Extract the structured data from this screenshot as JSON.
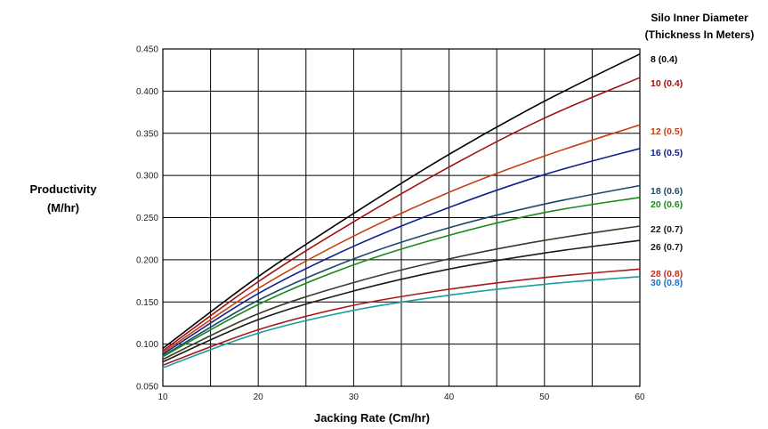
{
  "chart_data": {
    "type": "line",
    "title": "",
    "xlabel": "Jacking Rate (Cm/hr)",
    "ylabel": [
      "Productivity",
      "(M/hr)"
    ],
    "legend_title": [
      "Silo Inner Diameter",
      "(Thickness In Meters)"
    ],
    "legend_placement": "right",
    "grid": true,
    "xlim": [
      10,
      60
    ],
    "ylim": [
      0.05,
      0.45
    ],
    "x_ticks": [
      10,
      20,
      30,
      40,
      50,
      60
    ],
    "x_tick_labels": [
      "10",
      "20",
      "30",
      "40",
      "50",
      "60"
    ],
    "x_grid_step": 5,
    "y_ticks": [
      0.05,
      0.1,
      0.15,
      0.2,
      0.25,
      0.3,
      0.35,
      0.4,
      0.45
    ],
    "y_tick_labels": [
      "0.050",
      "0.100",
      "0.150",
      "0.200",
      "0.250",
      "0.300",
      "0.350",
      "0.400",
      "0.450"
    ],
    "x": [
      10,
      20,
      30,
      40,
      50,
      60
    ],
    "series": [
      {
        "name": "8 (0.4)",
        "color": "#000000",
        "values": [
          0.095,
          0.18,
          0.255,
          0.325,
          0.388,
          0.444
        ]
      },
      {
        "name": "10 (0.4)",
        "color": "#a01010",
        "values": [
          0.092,
          0.174,
          0.245,
          0.31,
          0.368,
          0.416
        ]
      },
      {
        "name": "12 (0.5)",
        "color": "#c84010",
        "values": [
          0.09,
          0.166,
          0.228,
          0.28,
          0.323,
          0.36
        ]
      },
      {
        "name": "16 (0.5)",
        "color": "#10208c",
        "values": [
          0.088,
          0.16,
          0.216,
          0.262,
          0.301,
          0.332
        ]
      },
      {
        "name": "18 (0.6)",
        "color": "#1a4a6a",
        "values": [
          0.086,
          0.152,
          0.201,
          0.238,
          0.266,
          0.288
        ]
      },
      {
        "name": "20 (0.6)",
        "color": "#1a8a1a",
        "values": [
          0.085,
          0.147,
          0.194,
          0.229,
          0.256,
          0.274
        ]
      },
      {
        "name": "22 (0.7)",
        "color": "#3a3a28",
        "values": [
          0.082,
          0.136,
          0.173,
          0.201,
          0.223,
          0.24
        ]
      },
      {
        "name": "26 (0.7)",
        "color": "#1a1a1a",
        "values": [
          0.079,
          0.129,
          0.163,
          0.189,
          0.208,
          0.223
        ]
      },
      {
        "name": "28 (0.8)",
        "color": "#a81a1a",
        "values": [
          0.075,
          0.117,
          0.146,
          0.165,
          0.179,
          0.189
        ]
      },
      {
        "name": "30 (0.8)",
        "color": "#1aa0a0",
        "values": [
          0.072,
          0.113,
          0.14,
          0.158,
          0.171,
          0.18
        ]
      }
    ],
    "series_label_colors": [
      "#000000",
      "#a01010",
      "#c84010",
      "#10208c",
      "#1a4a6a",
      "#1a8a1a",
      "#1a1a1a",
      "#1a1a1a",
      "#c03020",
      "#1a70d0"
    ]
  }
}
